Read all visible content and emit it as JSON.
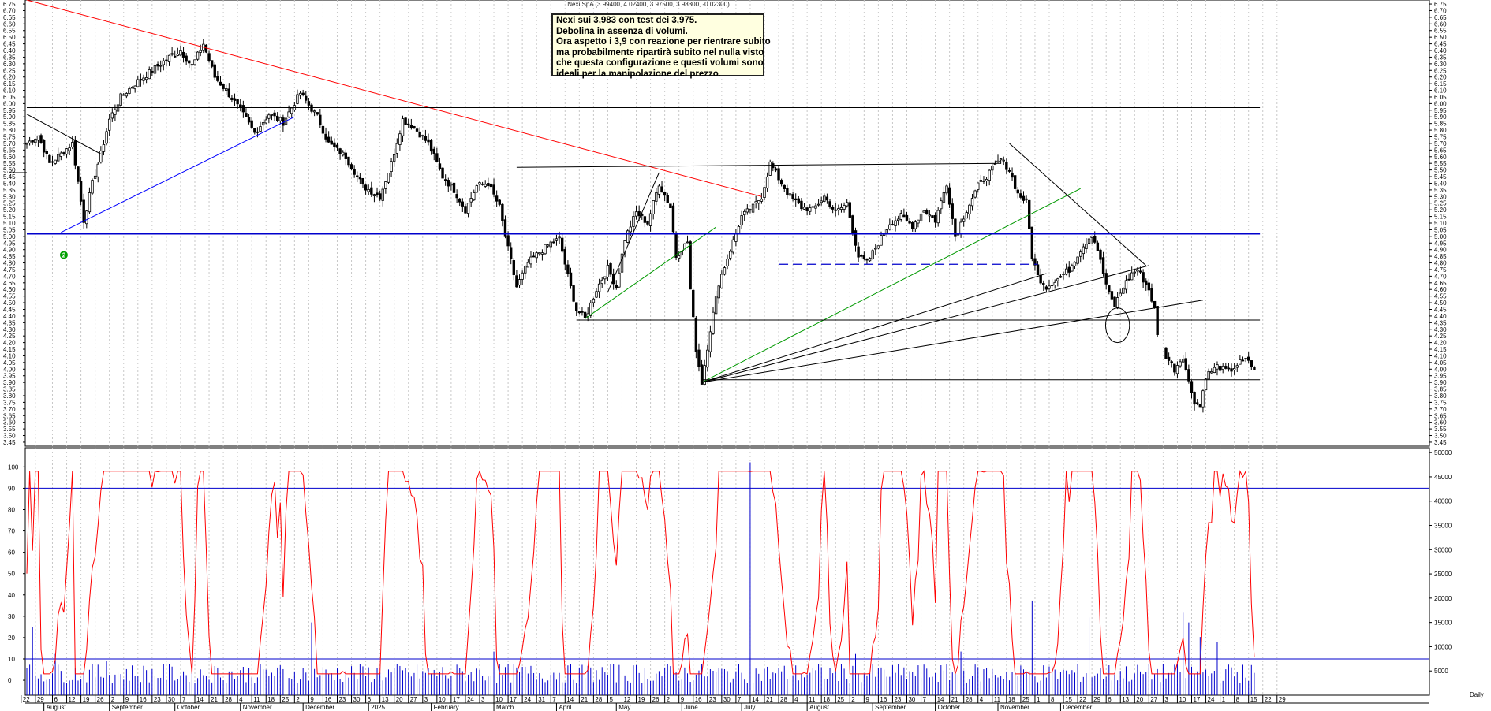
{
  "chart_data": [
    {
      "type": "candlestick",
      "symbol_line": "Nexi SpA (3.99400, 4.02400, 3.97500, 3.98300, -0.02300)",
      "y_ticks": [
        "3.45",
        "3.50",
        "3.55",
        "3.60",
        "3.65",
        "3.70",
        "3.75",
        "3.80",
        "3.85",
        "3.90",
        "3.95",
        "4.00",
        "4.05",
        "4.10",
        "4.15",
        "4.20",
        "4.25",
        "4.30",
        "4.35",
        "4.40",
        "4.45",
        "4.50",
        "4.55",
        "4.60",
        "4.65",
        "4.70",
        "4.75",
        "4.80",
        "4.85",
        "4.90",
        "4.95",
        "5.00",
        "5.05",
        "5.10",
        "5.15",
        "5.20",
        "5.25",
        "5.30",
        "5.35",
        "5.40",
        "5.45",
        "5.50",
        "5.55",
        "5.60",
        "5.65",
        "5.70",
        "5.75",
        "5.80",
        "5.85",
        "5.90",
        "5.95",
        "6.00",
        "6.05",
        "6.10",
        "6.15",
        "6.20",
        "6.25",
        "6.30",
        "6.35",
        "6.40",
        "6.45",
        "6.50",
        "6.55",
        "6.60",
        "6.65",
        "6.70",
        "6.75"
      ],
      "ylim": [
        3.42,
        6.78
      ],
      "anchors": [
        [
          0,
          5.7
        ],
        [
          4,
          5.76
        ],
        [
          8,
          5.55
        ],
        [
          12,
          5.62
        ],
        [
          16,
          5.7
        ],
        [
          20,
          5.12
        ],
        [
          23,
          5.4
        ],
        [
          26,
          5.62
        ],
        [
          29,
          5.88
        ],
        [
          33,
          6.05
        ],
        [
          38,
          6.15
        ],
        [
          44,
          6.25
        ],
        [
          50,
          6.35
        ],
        [
          54,
          6.4
        ],
        [
          58,
          6.28
        ],
        [
          62,
          6.45
        ],
        [
          66,
          6.2
        ],
        [
          70,
          6.1
        ],
        [
          75,
          5.95
        ],
        [
          80,
          5.78
        ],
        [
          85,
          5.92
        ],
        [
          90,
          5.86
        ],
        [
          96,
          6.08
        ],
        [
          102,
          5.9
        ],
        [
          106,
          5.7
        ],
        [
          112,
          5.6
        ],
        [
          118,
          5.38
        ],
        [
          124,
          5.3
        ],
        [
          128,
          5.55
        ],
        [
          132,
          5.88
        ],
        [
          136,
          5.82
        ],
        [
          141,
          5.7
        ],
        [
          146,
          5.45
        ],
        [
          150,
          5.35
        ],
        [
          154,
          5.2
        ],
        [
          158,
          5.38
        ],
        [
          162,
          5.4
        ],
        [
          166,
          5.22
        ],
        [
          168,
          5.0
        ],
        [
          172,
          4.62
        ],
        [
          176,
          4.8
        ],
        [
          180,
          4.88
        ],
        [
          184,
          4.95
        ],
        [
          187,
          4.98
        ],
        [
          190,
          4.7
        ],
        [
          193,
          4.45
        ],
        [
          196,
          4.38
        ],
        [
          200,
          4.6
        ],
        [
          204,
          4.76
        ],
        [
          207,
          4.62
        ],
        [
          210,
          4.98
        ],
        [
          214,
          5.18
        ],
        [
          218,
          5.1
        ],
        [
          222,
          5.4
        ],
        [
          226,
          5.22
        ],
        [
          228,
          4.85
        ],
        [
          232,
          4.96
        ],
        [
          233,
          4.6
        ],
        [
          235,
          4.15
        ],
        [
          237,
          3.9
        ],
        [
          240,
          4.3
        ],
        [
          243,
          4.65
        ],
        [
          247,
          4.9
        ],
        [
          251,
          5.15
        ],
        [
          255,
          5.22
        ],
        [
          258,
          5.3
        ],
        [
          261,
          5.55
        ],
        [
          265,
          5.4
        ],
        [
          268,
          5.3
        ],
        [
          272,
          5.22
        ],
        [
          276,
          5.2
        ],
        [
          280,
          5.3
        ],
        [
          284,
          5.18
        ],
        [
          288,
          5.25
        ],
        [
          292,
          4.85
        ],
        [
          295,
          4.8
        ],
        [
          299,
          4.95
        ],
        [
          303,
          5.1
        ],
        [
          307,
          5.15
        ],
        [
          311,
          5.08
        ],
        [
          315,
          5.2
        ],
        [
          319,
          5.12
        ],
        [
          323,
          5.4
        ],
        [
          326,
          5.0
        ],
        [
          330,
          5.2
        ],
        [
          334,
          5.38
        ],
        [
          338,
          5.48
        ],
        [
          342,
          5.58
        ],
        [
          345,
          5.5
        ],
        [
          348,
          5.32
        ],
        [
          351,
          5.26
        ],
        [
          353,
          4.85
        ],
        [
          355,
          4.7
        ],
        [
          358,
          4.62
        ],
        [
          362,
          4.68
        ],
        [
          366,
          4.75
        ],
        [
          370,
          4.9
        ],
        [
          374,
          5.02
        ],
        [
          376,
          4.9
        ],
        [
          378,
          4.72
        ],
        [
          380,
          4.56
        ],
        [
          382,
          4.48
        ],
        [
          385,
          4.62
        ],
        [
          388,
          4.72
        ],
        [
          390,
          4.75
        ],
        [
          394,
          4.6
        ],
        [
          396,
          4.45
        ],
        [
          397,
          4.25
        ],
        [
          400,
          4.1
        ],
        [
          403,
          4.0
        ],
        [
          406,
          4.1
        ],
        [
          408,
          3.9
        ],
        [
          410,
          3.76
        ],
        [
          412,
          3.72
        ],
        [
          414,
          3.95
        ],
        [
          418,
          4.02
        ],
        [
          422,
          3.98
        ],
        [
          426,
          4.05
        ],
        [
          429,
          4.07
        ],
        [
          431,
          3.98
        ]
      ],
      "trendlines": [
        {
          "points": [
            [
              0,
              6.78
            ],
            [
              258,
              5.3
            ]
          ],
          "color": "#ff0000"
        },
        {
          "points": [
            [
              -6,
              5.48
            ],
            [
              0,
              5.48
            ]
          ],
          "color": "#000000"
        },
        {
          "points": [
            [
              0,
              5.92
            ],
            [
              26,
              5.62
            ]
          ],
          "color": "#000000"
        },
        {
          "points": [
            [
              12,
              5.03
            ],
            [
              94,
              5.9
            ]
          ],
          "color": "#0000ff"
        },
        {
          "points": [
            [
              172,
              5.52
            ],
            [
              342,
              5.55
            ]
          ],
          "color": "#000000"
        },
        {
          "points": [
            [
              204,
              4.58
            ],
            [
              222,
              5.48
            ]
          ],
          "color": "#000000"
        },
        {
          "points": [
            [
              196,
              4.38
            ],
            [
              242,
              5.07
            ]
          ],
          "color": "#009900"
        },
        {
          "points": [
            [
              237,
              3.9
            ],
            [
              370,
              5.36
            ]
          ],
          "color": "#009900"
        },
        {
          "points": [
            [
              237,
              3.9
            ],
            [
              394,
              4.78
            ]
          ],
          "color": "#000000"
        },
        {
          "points": [
            [
              237,
              3.9
            ],
            [
              413,
              4.52
            ]
          ],
          "color": "#000000"
        },
        {
          "points": [
            [
              237,
              3.9
            ],
            [
              358,
              4.72
            ]
          ],
          "color": "#000000"
        },
        {
          "points": [
            [
              345,
              5.7
            ],
            [
              393,
              4.78
            ]
          ],
          "color": "#000000"
        },
        {
          "points": [
            [
              193,
              4.37
            ],
            [
              433,
              4.37
            ]
          ],
          "color": "#000000"
        },
        {
          "points": [
            [
              237,
              3.92
            ],
            [
              433,
              3.92
            ]
          ],
          "color": "#000000"
        },
        {
          "points": [
            [
              0,
              5.97
            ],
            [
              433,
              5.97
            ]
          ],
          "color": "#000000"
        },
        {
          "points": [
            [
              0,
              5.02
            ],
            [
              433,
              5.02
            ]
          ],
          "color": "#0000cc",
          "width": 2
        }
      ],
      "dashed_line": {
        "from": [
          264,
          4.79
        ],
        "to": [
          355,
          4.79
        ],
        "color": "#0000cc"
      },
      "ellipse": {
        "cx": 383,
        "cy": 4.33,
        "rx": 4.2,
        "ry": 0.13
      },
      "marker": {
        "x": 13,
        "y": 4.86,
        "label": "2",
        "color": "#00a000"
      },
      "annotation": {
        "lines": [
          "Nexi sui 3,983 con test dei 3,975.",
          "Debolina in assenza di volumi.",
          "Ora aspetto i 3,9 con reazione per rientrare subito",
          "ma probabilmente ripartirà subito nel nulla visto",
          "che questa configurazione e questi volumi sono",
          "ideali per la manipolazione del prezzo."
        ]
      }
    },
    {
      "type": "line+bar",
      "left_ticks": [
        "0",
        "10",
        "20",
        "30",
        "40",
        "50",
        "60",
        "70",
        "80",
        "90",
        "100"
      ],
      "right_ticks": [
        "5000",
        "10000",
        "15000",
        "20000",
        "25000",
        "30000",
        "35000",
        "40000",
        "45000",
        "50000"
      ],
      "oscillator_levels": [
        10,
        90
      ],
      "volume_spikes": [
        [
          2,
          14000
        ],
        [
          10,
          8500
        ],
        [
          28,
          7000
        ],
        [
          100,
          15000
        ],
        [
          164,
          9000
        ],
        [
          254,
          48000
        ],
        [
          291,
          8500
        ],
        [
          328,
          9000
        ],
        [
          353,
          19500
        ],
        [
          373,
          16000
        ],
        [
          406,
          17000
        ],
        [
          408,
          15000
        ],
        [
          412,
          12000
        ],
        [
          418,
          11000
        ]
      ]
    }
  ],
  "x_axis": {
    "day_labels": [
      {
        "x": -2,
        "t": "22"
      },
      {
        "x": 3,
        "t": "29"
      },
      {
        "x": 9,
        "t": "6"
      },
      {
        "x": 14,
        "t": "12"
      },
      {
        "x": 19,
        "t": "19"
      },
      {
        "x": 24,
        "t": "26"
      },
      {
        "x": 29,
        "t": "2"
      },
      {
        "x": 34,
        "t": "9"
      },
      {
        "x": 39,
        "t": "16"
      },
      {
        "x": 44,
        "t": "23"
      },
      {
        "x": 49,
        "t": "30"
      },
      {
        "x": 54,
        "t": "7"
      },
      {
        "x": 59,
        "t": "14"
      },
      {
        "x": 64,
        "t": "21"
      },
      {
        "x": 69,
        "t": "28"
      },
      {
        "x": 74,
        "t": "4"
      },
      {
        "x": 79,
        "t": "11"
      },
      {
        "x": 84,
        "t": "18"
      },
      {
        "x": 89,
        "t": "25"
      },
      {
        "x": 94,
        "t": "2"
      },
      {
        "x": 99,
        "t": "9"
      },
      {
        "x": 104,
        "t": "16"
      },
      {
        "x": 109,
        "t": "23"
      },
      {
        "x": 114,
        "t": "30"
      },
      {
        "x": 119,
        "t": "6"
      },
      {
        "x": 124,
        "t": "13"
      },
      {
        "x": 129,
        "t": "20"
      },
      {
        "x": 134,
        "t": "27"
      },
      {
        "x": 139,
        "t": "3"
      },
      {
        "x": 144,
        "t": "10"
      },
      {
        "x": 149,
        "t": "17"
      },
      {
        "x": 154,
        "t": "24"
      },
      {
        "x": 159,
        "t": "3"
      },
      {
        "x": 164,
        "t": "10"
      },
      {
        "x": 169,
        "t": "17"
      },
      {
        "x": 174,
        "t": "24"
      },
      {
        "x": 179,
        "t": "31"
      },
      {
        "x": 184,
        "t": "7"
      },
      {
        "x": 189,
        "t": "14"
      },
      {
        "x": 194,
        "t": "21"
      },
      {
        "x": 199,
        "t": "28"
      },
      {
        "x": 204,
        "t": "5"
      },
      {
        "x": 209,
        "t": "12"
      },
      {
        "x": 214,
        "t": "19"
      },
      {
        "x": 219,
        "t": "26"
      },
      {
        "x": 224,
        "t": "2"
      },
      {
        "x": 229,
        "t": "9"
      },
      {
        "x": 234,
        "t": "16"
      },
      {
        "x": 239,
        "t": "23"
      },
      {
        "x": 244,
        "t": "30"
      },
      {
        "x": 249,
        "t": "7"
      },
      {
        "x": 254,
        "t": "14"
      },
      {
        "x": 259,
        "t": "21"
      },
      {
        "x": 264,
        "t": "28"
      },
      {
        "x": 269,
        "t": "4"
      },
      {
        "x": 274,
        "t": "11"
      },
      {
        "x": 279,
        "t": "18"
      },
      {
        "x": 284,
        "t": "25"
      },
      {
        "x": 289,
        "t": "2"
      },
      {
        "x": 294,
        "t": "9"
      },
      {
        "x": 299,
        "t": "16"
      },
      {
        "x": 304,
        "t": "23"
      },
      {
        "x": 309,
        "t": "30"
      },
      {
        "x": 314,
        "t": "7"
      },
      {
        "x": 319,
        "t": "14"
      },
      {
        "x": 324,
        "t": "21"
      },
      {
        "x": 329,
        "t": "28"
      },
      {
        "x": 334,
        "t": "4"
      },
      {
        "x": 339,
        "t": "11"
      },
      {
        "x": 344,
        "t": "18"
      },
      {
        "x": 349,
        "t": "25"
      },
      {
        "x": 354,
        "t": "1"
      },
      {
        "x": 359,
        "t": "8"
      },
      {
        "x": 364,
        "t": "15"
      },
      {
        "x": 369,
        "t": "22"
      },
      {
        "x": 374,
        "t": "29"
      },
      {
        "x": 379,
        "t": "6"
      },
      {
        "x": 384,
        "t": "13"
      },
      {
        "x": 389,
        "t": "20"
      },
      {
        "x": 394,
        "t": "27"
      },
      {
        "x": 399,
        "t": "3"
      },
      {
        "x": 404,
        "t": "10"
      },
      {
        "x": 409,
        "t": "17"
      },
      {
        "x": 414,
        "t": "24"
      },
      {
        "x": 419,
        "t": "1"
      },
      {
        "x": 424,
        "t": "8"
      },
      {
        "x": 429,
        "t": "15"
      },
      {
        "x": 434,
        "t": "22"
      },
      {
        "x": 439,
        "t": "29"
      }
    ],
    "month_labels": [
      {
        "x": 6,
        "t": "August"
      },
      {
        "x": 29,
        "t": "September"
      },
      {
        "x": 52,
        "t": "October"
      },
      {
        "x": 75,
        "t": "November"
      },
      {
        "x": 97,
        "t": "December"
      },
      {
        "x": 120,
        "t": "2025"
      },
      {
        "x": 142,
        "t": "February"
      },
      {
        "x": 164,
        "t": "March"
      },
      {
        "x": 186,
        "t": "April"
      },
      {
        "x": 207,
        "t": "May"
      },
      {
        "x": 230,
        "t": "June"
      },
      {
        "x": 251,
        "t": "July"
      },
      {
        "x": 274,
        "t": "August"
      },
      {
        "x": 297,
        "t": "September"
      },
      {
        "x": 319,
        "t": "October"
      },
      {
        "x": 341,
        "t": "November"
      },
      {
        "x": 363,
        "t": "December"
      }
    ],
    "corner_label": "Daily"
  }
}
